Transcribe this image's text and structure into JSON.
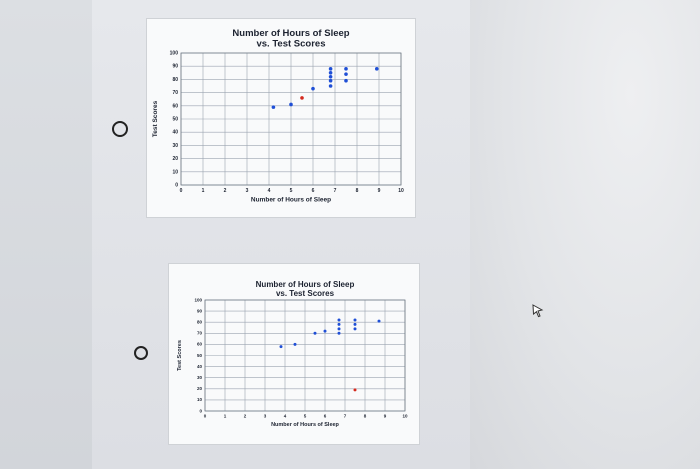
{
  "options": [
    {
      "id": "option-a",
      "selected": false,
      "chart_data": {
        "type": "scatter",
        "title": "Number of Hours of Sleep",
        "subtitle": "vs. Test Scores",
        "xlabel": "Number of Hours of Sleep",
        "ylabel": "Test Scores",
        "xlim": [
          0,
          10
        ],
        "ylim": [
          0,
          100
        ],
        "x_ticks": [
          "0",
          "1",
          "2",
          "3",
          "4",
          "5",
          "6",
          "7",
          "8",
          "9",
          "10"
        ],
        "y_ticks": [
          "0",
          "10",
          "20",
          "30",
          "40",
          "50",
          "60",
          "70",
          "80",
          "90",
          "100"
        ],
        "grid": true,
        "points": [
          {
            "x": 4.2,
            "y": 59,
            "color": "#1f4fd6"
          },
          {
            "x": 5.0,
            "y": 61,
            "color": "#1f4fd6"
          },
          {
            "x": 5.5,
            "y": 66,
            "color": "#d42a1e"
          },
          {
            "x": 6.0,
            "y": 73,
            "color": "#1f4fd6"
          },
          {
            "x": 6.8,
            "y": 75,
            "color": "#1f4fd6"
          },
          {
            "x": 6.8,
            "y": 79,
            "color": "#1f4fd6"
          },
          {
            "x": 6.8,
            "y": 82,
            "color": "#1f4fd6"
          },
          {
            "x": 6.8,
            "y": 85,
            "color": "#1f4fd6"
          },
          {
            "x": 6.8,
            "y": 88,
            "color": "#1f4fd6"
          },
          {
            "x": 7.5,
            "y": 79,
            "color": "#1f4fd6"
          },
          {
            "x": 7.5,
            "y": 84,
            "color": "#1f4fd6"
          },
          {
            "x": 7.5,
            "y": 88,
            "color": "#1f4fd6"
          },
          {
            "x": 8.9,
            "y": 88,
            "color": "#1f4fd6"
          }
        ]
      }
    },
    {
      "id": "option-b",
      "selected": false,
      "chart_data": {
        "type": "scatter",
        "title": "Number of Hours of Sleep",
        "subtitle": "vs. Test Scores",
        "xlabel": "Number of Hours of Sleep",
        "ylabel": "Test Scores",
        "xlim": [
          0,
          10
        ],
        "ylim": [
          0,
          100
        ],
        "x_ticks": [
          "0",
          "1",
          "2",
          "3",
          "4",
          "5",
          "6",
          "7",
          "8",
          "9",
          "10"
        ],
        "y_ticks": [
          "0",
          "10",
          "20",
          "30",
          "40",
          "50",
          "60",
          "70",
          "80",
          "90",
          "100"
        ],
        "grid": true,
        "points": [
          {
            "x": 3.8,
            "y": 58,
            "color": "#1f4fd6"
          },
          {
            "x": 4.5,
            "y": 60,
            "color": "#1f4fd6"
          },
          {
            "x": 5.5,
            "y": 70,
            "color": "#1f4fd6"
          },
          {
            "x": 6.0,
            "y": 72,
            "color": "#1f4fd6"
          },
          {
            "x": 6.7,
            "y": 70,
            "color": "#1f4fd6"
          },
          {
            "x": 6.7,
            "y": 74,
            "color": "#1f4fd6"
          },
          {
            "x": 6.7,
            "y": 78,
            "color": "#1f4fd6"
          },
          {
            "x": 6.7,
            "y": 82,
            "color": "#1f4fd6"
          },
          {
            "x": 7.5,
            "y": 74,
            "color": "#1f4fd6"
          },
          {
            "x": 7.5,
            "y": 78,
            "color": "#1f4fd6"
          },
          {
            "x": 7.5,
            "y": 82,
            "color": "#1f4fd6"
          },
          {
            "x": 8.7,
            "y": 81,
            "color": "#1f4fd6"
          },
          {
            "x": 7.5,
            "y": 19,
            "color": "#d42a1e"
          }
        ]
      }
    }
  ],
  "colors": {
    "grid": "#9aa3b0",
    "frame": "#6f7884",
    "text": "#1c2230"
  },
  "icons": {
    "cursor": "mouse-pointer-icon"
  }
}
